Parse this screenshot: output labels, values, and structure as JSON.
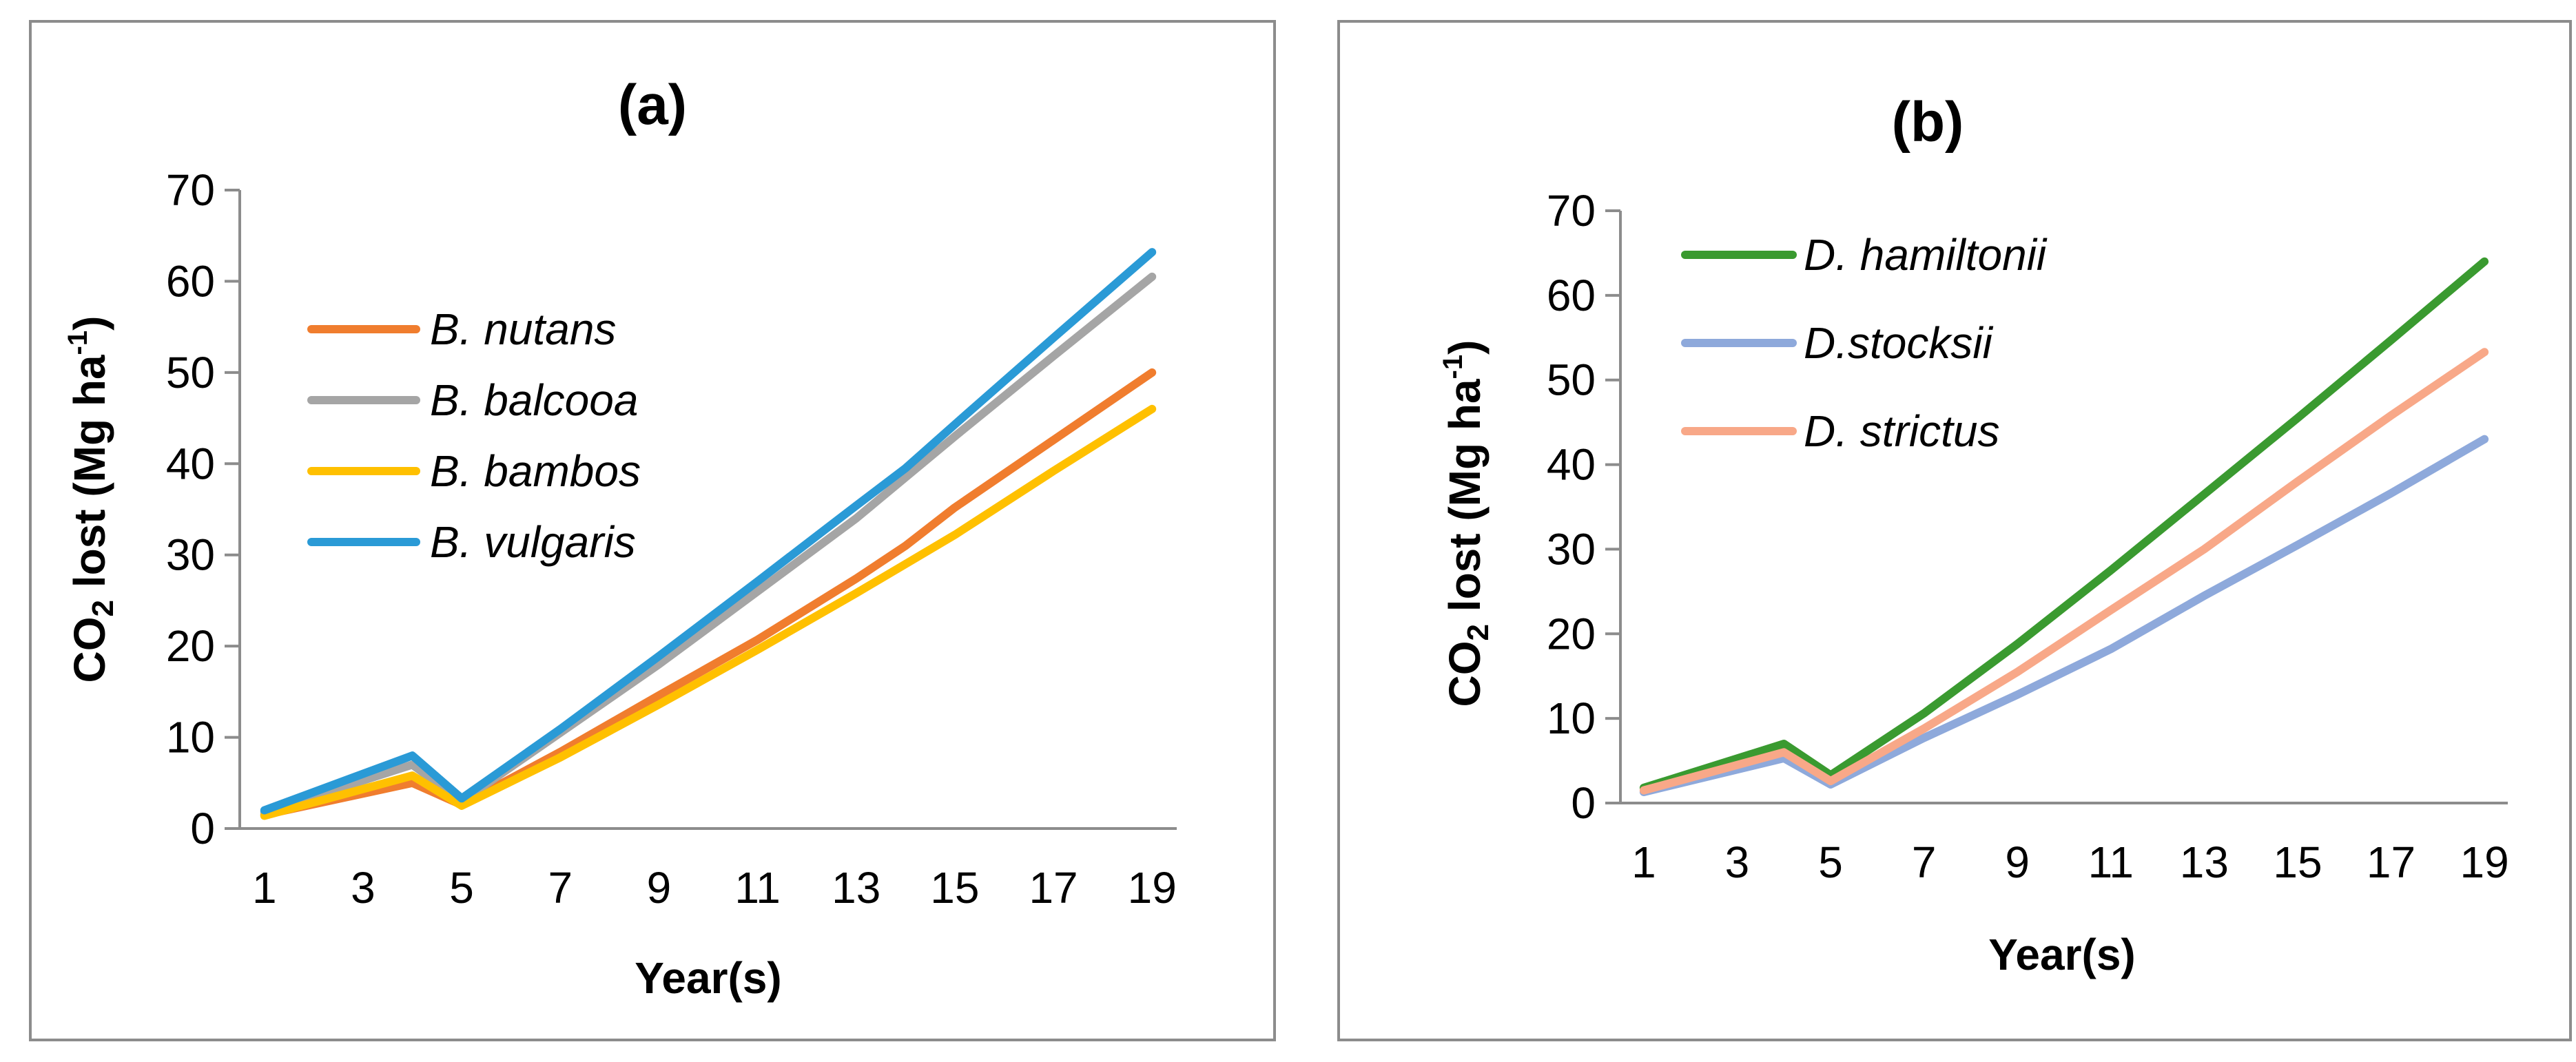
{
  "chart_data": [
    {
      "type": "line",
      "title": "(a)",
      "xlabel": "Year(s)",
      "ylabel": {
        "prefix": "CO",
        "sub": "2",
        "mid": " lost (Mg ha",
        "sup": "-1",
        "suffix": ")"
      },
      "x": [
        1,
        4,
        5,
        7,
        9,
        11,
        13,
        14,
        15,
        17,
        19
      ],
      "x_ticks": [
        "1",
        "3",
        "5",
        "7",
        "9",
        "11",
        "13",
        "15",
        "17",
        "19"
      ],
      "x_tick_values": [
        1,
        3,
        5,
        7,
        9,
        11,
        13,
        15,
        17,
        19
      ],
      "xlim": [
        0.5,
        19.5
      ],
      "ylim": [
        0,
        70
      ],
      "y_ticks": [
        "0",
        "10",
        "20",
        "30",
        "40",
        "50",
        "60",
        "70"
      ],
      "grid": false,
      "legend_position": "upper-left",
      "series": [
        {
          "name": "B. nutans",
          "color": "#F07D2E",
          "values": [
            1.5,
            5.0,
            2.6,
            8.4,
            14.6,
            20.7,
            27.4,
            31.0,
            35.2,
            42.6,
            50.0
          ]
        },
        {
          "name": "B. balcooa",
          "color": "#A5A5A5",
          "values": [
            1.8,
            7.0,
            3.0,
            10.5,
            18.0,
            26.0,
            34.0,
            38.5,
            43.0,
            51.8,
            60.5
          ]
        },
        {
          "name": "B. bambos",
          "color": "#FFC000",
          "values": [
            1.4,
            5.8,
            2.5,
            7.8,
            13.6,
            19.6,
            25.8,
            29.0,
            32.2,
            39.2,
            46.0
          ]
        },
        {
          "name": "B. vulgaris",
          "color": "#2A9AD6",
          "values": [
            2.0,
            8.0,
            3.3,
            10.9,
            18.9,
            27.1,
            35.4,
            39.5,
            44.3,
            53.8,
            63.2
          ]
        }
      ]
    },
    {
      "type": "line",
      "title": "(b)",
      "xlabel": "Year(s)",
      "ylabel": {
        "prefix": "CO",
        "sub": "2",
        "mid": " lost (Mg ha",
        "sup": "-1",
        "suffix": ")"
      },
      "x": [
        1,
        4,
        5,
        7,
        9,
        11,
        13,
        15,
        17,
        19
      ],
      "x_ticks": [
        "1",
        "3",
        "5",
        "7",
        "9",
        "11",
        "13",
        "15",
        "17",
        "19"
      ],
      "x_tick_values": [
        1,
        3,
        5,
        7,
        9,
        11,
        13,
        15,
        17,
        19
      ],
      "xlim": [
        0.5,
        19.5
      ],
      "ylim": [
        0,
        70
      ],
      "y_ticks": [
        "0",
        "10",
        "20",
        "30",
        "40",
        "50",
        "60",
        "70"
      ],
      "grid": false,
      "legend_position": "upper-left",
      "series": [
        {
          "name": "D. hamiltonii",
          "color": "#3A9A30",
          "values": [
            1.8,
            7.0,
            3.3,
            10.6,
            18.8,
            27.5,
            36.5,
            45.5,
            54.7,
            64.0
          ]
        },
        {
          "name": "D.stocksii",
          "color": "#8EA9DB",
          "values": [
            1.3,
            5.3,
            2.2,
            7.7,
            12.8,
            18.2,
            24.5,
            30.5,
            36.6,
            43.0
          ]
        },
        {
          "name": "D. strictus",
          "color": "#F8A888",
          "values": [
            1.5,
            6.0,
            2.6,
            8.8,
            15.5,
            22.8,
            30.0,
            38.0,
            45.8,
            53.3
          ]
        }
      ]
    }
  ]
}
